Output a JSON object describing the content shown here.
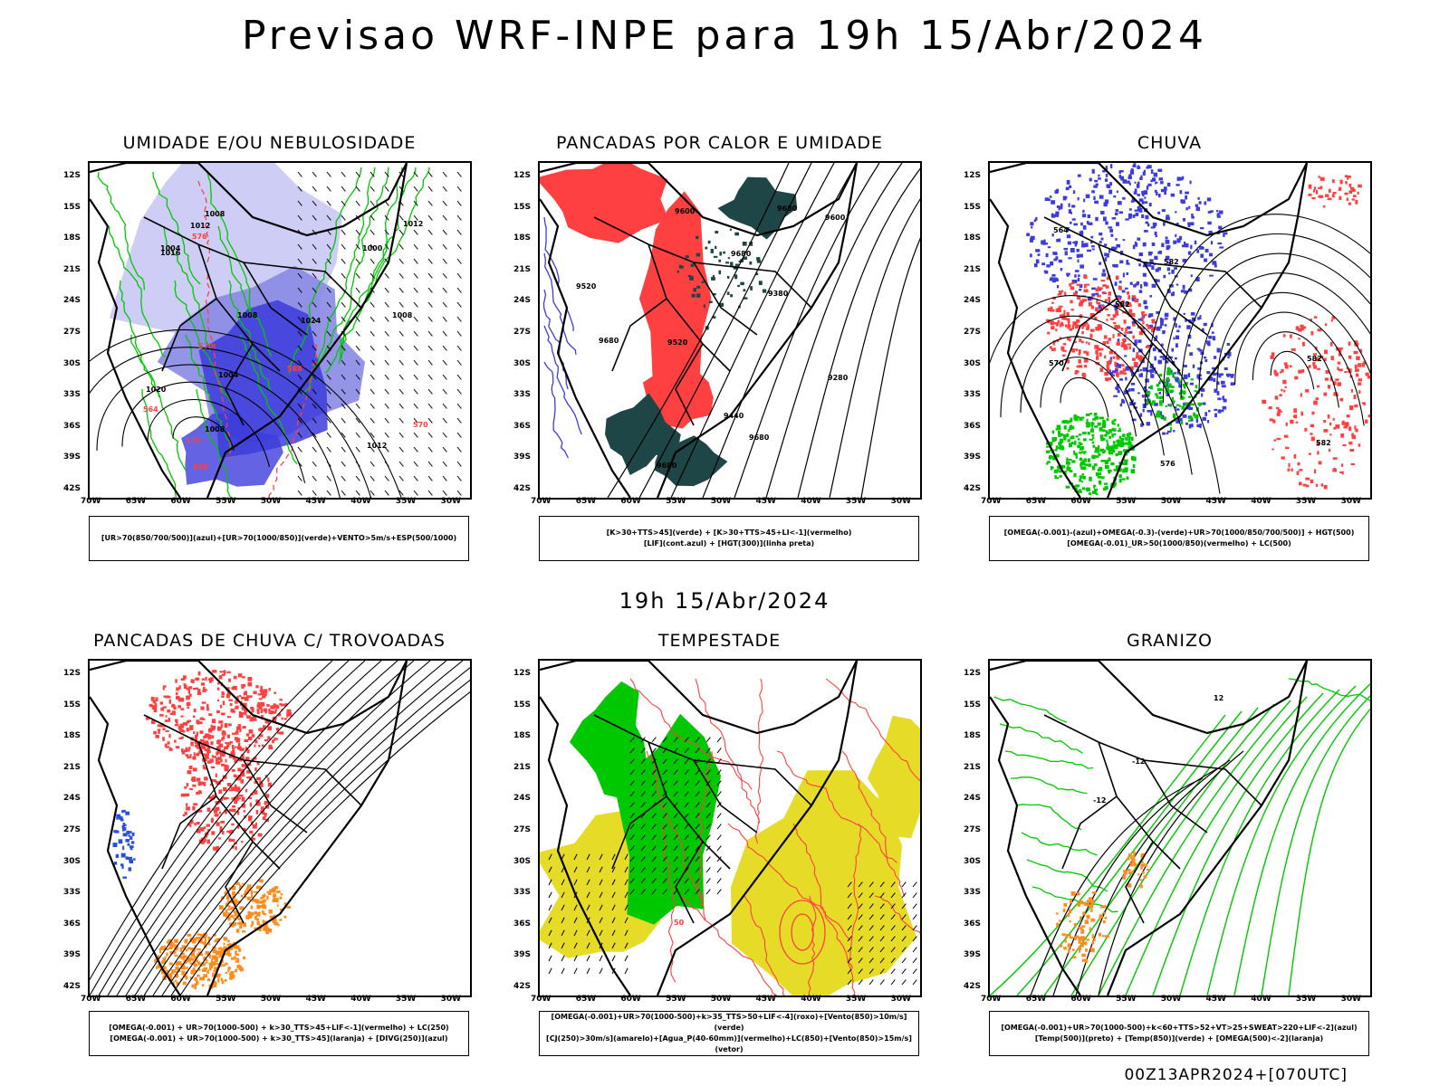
{
  "page": {
    "title": "Previsao WRF-INPE  para 19h 15/Abr/2024",
    "mid_date": "19h 15/Abr/2024",
    "footer_run": "00Z13APR2024+[070UTC]"
  },
  "axes": {
    "lat_labels": [
      "12S",
      "15S",
      "18S",
      "21S",
      "24S",
      "27S",
      "30S",
      "33S",
      "36S",
      "39S",
      "42S"
    ],
    "lon_labels": [
      "70W",
      "65W",
      "60W",
      "55W",
      "50W",
      "45W",
      "40W",
      "35W",
      "30W"
    ]
  },
  "colors": {
    "blue_light": "#c8c8f5",
    "blue_mid": "#8a8ae6",
    "blue_strong": "#3c3cdc",
    "green": "#00c800",
    "red": "#ff4040",
    "dark_teal": "#1e4646",
    "orange": "#ff8c1e",
    "yellow": "#e6dc28",
    "contour": "#000000"
  },
  "panels": [
    {
      "id": "umidade",
      "title": "UMIDADE E/OU NEBULOSIDADE",
      "legend": [
        "[UR>70(850/700/500)](azul)+[UR>70(1000/850)](verde)+VENTO>5m/s+ESP(500/1000)"
      ],
      "contour_labels": [
        "1012",
        "1008",
        "1008",
        "1012",
        "1020",
        "1016",
        "1024",
        "1008",
        "1004",
        "1012",
        "1000",
        "1008",
        "1004"
      ],
      "red_labels": [
        "570",
        "576",
        "570",
        "558",
        "570",
        "564",
        "588"
      ]
    },
    {
      "id": "pancadas-calor",
      "title": "PANCADAS POR CALOR E UMIDADE",
      "legend": [
        "[K>30+TTS>45](verde)  +  [K>30+TTS>45+LI<-1](vermelho)",
        "[LIF](cont.azul)  +  [HGT(300)](linha preta)"
      ],
      "contour_labels": [
        "9680",
        "9680",
        "9680",
        "9680",
        "9600",
        "9520",
        "9440",
        "9380",
        "9280",
        "9680",
        "9600",
        "9520"
      ]
    },
    {
      "id": "chuva",
      "title": "CHUVA",
      "legend": [
        "[OMEGA(-0.001)-(azul)+OMEGA(-0.3)-(verde)+UR>70(1000/850/700/500)]  +  HGT(500)",
        "[OMEGA(-0.01)_UR>50(1000/850)(vermelho)  +  LC(500)"
      ],
      "contour_labels": [
        "582",
        "582",
        "570",
        "564",
        "582",
        "582",
        "576"
      ]
    },
    {
      "id": "pancadas-trovoadas",
      "title": "PANCADAS DE CHUVA C/ TROVOADAS",
      "legend": [
        "[OMEGA(-0.001)  +  UR>70(1000-500)  +  k>30_TTS>45+LIF<-1](vermelho)  +  LC(250)",
        "[OMEGA(-0.001)  +  UR>70(1000-500)  +  k>30_TTS>45](laranja)  +  [DIVG(250)](azul)"
      ],
      "contour_labels": []
    },
    {
      "id": "tempestade",
      "title": "TEMPESTADE",
      "legend": [
        "[OMEGA(-0.001)+UR>70(1000-500)+k>35_TTS>50+LIF<-4](roxo)+[Vento(850)>10m/s](verde)",
        "[CJ(250)>30m/s](amarelo)+[Agua_P(40-60mm)](vermelho)+LC(850)+[Vento(850)>15m/s](vetor)"
      ],
      "contour_labels": [
        "50"
      ]
    },
    {
      "id": "granizo",
      "title": "GRANIZO",
      "legend": [
        "[OMEGA(-0.001)+UR>70(1000-500)+k<60+TTS>52+VT>25+SWEAT>220+LIF<-2](azul)",
        "[Temp(500)](preto)  +  [Temp(850)](verde)  +  [OMEGA(500)<-2](laranja)"
      ],
      "contour_labels": [
        "-12",
        "12",
        "-12"
      ]
    }
  ]
}
